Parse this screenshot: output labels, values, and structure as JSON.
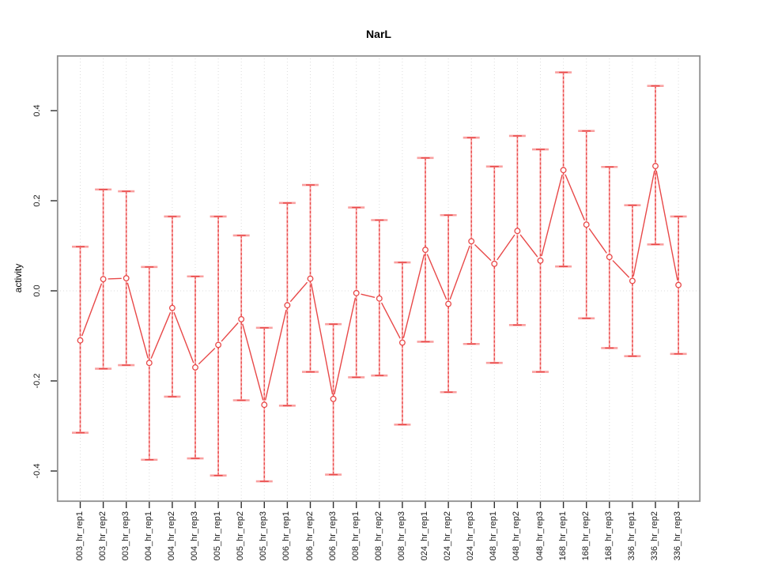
{
  "title": "NarL",
  "ylabel": "activity",
  "colors": {
    "series_red": "#e84848",
    "errorbar_light": "#f9a0a0",
    "grid": "#dcdcdc",
    "box_border": "#8f8f8f",
    "tick": "#2f2f2f",
    "label_text": "#1c1c1c"
  },
  "chart_data": {
    "type": "line",
    "title": "NarL",
    "xlabel": "",
    "ylabel": "activity",
    "ylim": [
      -0.468,
      0.523
    ],
    "yticks": [
      -0.4,
      -0.2,
      0.0,
      0.2,
      0.4
    ],
    "grid": "vertical dotted gridline at every category; horizontal dotted line at y=0",
    "legend_position": "none",
    "marker": "open-circle",
    "error_bars": true,
    "categories": [
      "003_hr_rep1",
      "003_hr_rep2",
      "003_hr_rep3",
      "004_hr_rep1",
      "004_hr_rep2",
      "004_hr_rep3",
      "005_hr_rep1",
      "005_hr_rep2",
      "005_hr_rep3",
      "006_hr_rep1",
      "006_hr_rep2",
      "006_hr_rep3",
      "008_hr_rep1",
      "008_hr_rep2",
      "008_hr_rep3",
      "024_hr_rep1",
      "024_hr_rep2",
      "024_hr_rep3",
      "048_hr_rep1",
      "048_hr_rep2",
      "048_hr_rep3",
      "168_hr_rep1",
      "168_hr_rep2",
      "168_hr_rep3",
      "336_hr_rep1",
      "336_hr_rep2",
      "336_hr_rep3"
    ],
    "series": [
      {
        "name": "activity",
        "values": [
          -0.11,
          0.026,
          0.028,
          -0.16,
          -0.038,
          -0.17,
          -0.12,
          -0.063,
          -0.253,
          -0.032,
          0.027,
          -0.24,
          -0.005,
          -0.017,
          -0.115,
          0.091,
          -0.029,
          0.11,
          0.06,
          0.133,
          0.067,
          0.268,
          0.147,
          0.075,
          0.022,
          0.277,
          0.013
        ],
        "error_upper": [
          0.098,
          0.225,
          0.221,
          0.053,
          0.165,
          0.032,
          0.165,
          0.123,
          -0.082,
          0.195,
          0.235,
          -0.074,
          0.185,
          0.157,
          0.063,
          0.295,
          0.168,
          0.34,
          0.276,
          0.344,
          0.314,
          0.485,
          0.355,
          0.275,
          0.19,
          0.455,
          0.165
        ],
        "error_lower": [
          -0.315,
          -0.173,
          -0.165,
          -0.375,
          -0.235,
          -0.372,
          -0.41,
          -0.243,
          -0.423,
          -0.255,
          -0.18,
          -0.408,
          -0.192,
          -0.188,
          -0.297,
          -0.113,
          -0.225,
          -0.118,
          -0.16,
          -0.076,
          -0.18,
          0.054,
          -0.061,
          -0.127,
          -0.145,
          0.103,
          -0.14
        ]
      }
    ]
  }
}
